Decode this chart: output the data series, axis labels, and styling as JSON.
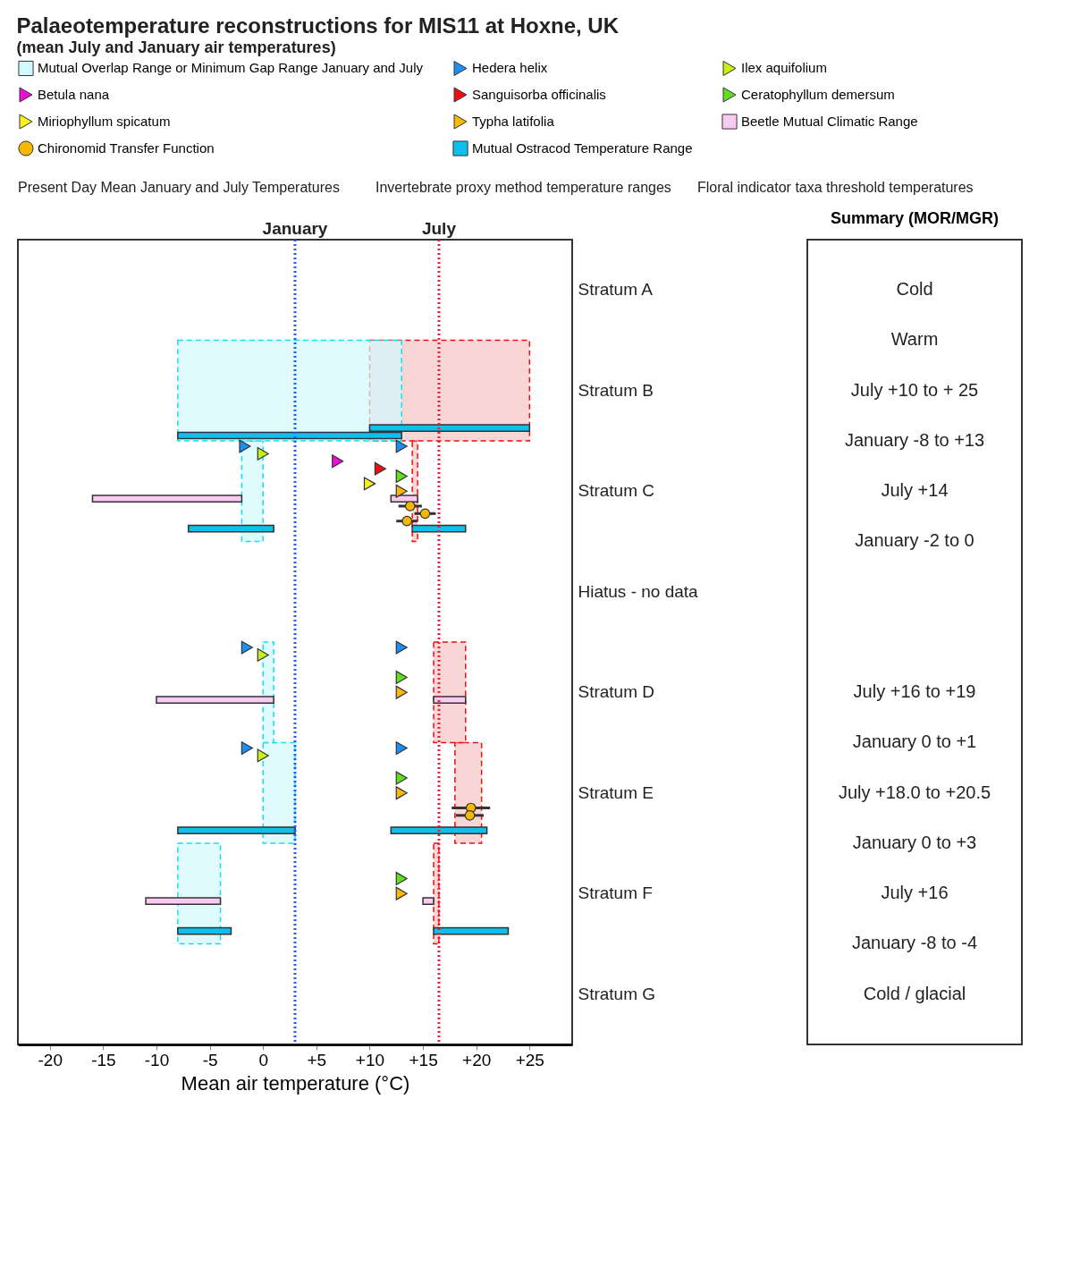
{
  "chart_data": {
    "type": "bar",
    "orientation": "horizontal",
    "title": "Palaeotemperature reconstructions for MIS11 at Hoxne, UK",
    "subtitle": "(mean July and January air temperatures)",
    "xlabel": "Mean air temperature (°C)",
    "categories": [
      "Stratum A",
      "Stratum B",
      "Stratum C",
      "Hiatus - no data",
      "Stratum D",
      "Stratum E",
      "Stratum F",
      "Stratum G"
    ],
    "xlim": [
      -23,
      29
    ],
    "xticks": [
      -20,
      -15,
      -10,
      -5,
      0,
      {
        "value": 5,
        "label": "+5"
      },
      {
        "value": 10,
        "label": "+10"
      },
      {
        "value": 15,
        "label": "+15"
      },
      {
        "value": 20,
        "label": "+20"
      },
      {
        "value": 25,
        "label": "+25"
      }
    ],
    "grid": false,
    "legend": "top",
    "ref_lines": [
      {
        "axis": "x",
        "value": 3,
        "label": "January",
        "color": "#1a5cff",
        "line_style": "dotted"
      },
      {
        "axis": "x",
        "value": 16.5,
        "label": "July",
        "color": "#ee1c3a",
        "line_style": "dotted"
      }
    ],
    "series": [
      {
        "name": "Mutual Overlap Range or Minimum Gap Range January and July",
        "color": "#d2fafd",
        "line_style": "dashed",
        "x": [
          "Stratum B",
          "Stratum C",
          "Stratum D",
          "Stratum E",
          "Stratum F"
        ],
        "base": [
          -8,
          -2,
          0,
          0,
          -8
        ],
        "values": [
          21,
          2,
          1,
          3,
          4
        ]
      },
      {
        "color": "#f7c5c5",
        "line_style": "dashed",
        "x": [
          "Stratum B",
          "Stratum C",
          "Stratum D",
          "Stratum E",
          "Stratum F"
        ],
        "base": [
          10,
          14,
          16,
          18,
          16
        ],
        "values": [
          15,
          0.5,
          3,
          2.5,
          0.5
        ]
      },
      {
        "name": "Hedera helix",
        "type": "scatter",
        "marker": "triangle",
        "color": "#1e8ef0",
        "x": [
          "Stratum C",
          "Stratum C",
          "Stratum D",
          "Stratum D",
          "Stratum E",
          "Stratum E"
        ],
        "values": [
          -1.7,
          13,
          -1.5,
          13,
          -1.5,
          13
        ]
      },
      {
        "name": "Ilex aquifolium",
        "type": "scatter",
        "marker": "triangle",
        "color": "#c8f014",
        "x": [
          "Stratum C",
          "Stratum D",
          "Stratum E"
        ],
        "values": [
          0,
          0,
          0
        ]
      },
      {
        "name": "Betula nana",
        "type": "scatter",
        "marker": "triangle",
        "color": "#ee0cd8",
        "x": [
          "Stratum C"
        ],
        "values": [
          7
        ]
      },
      {
        "name": "Sanguisorba officinalis",
        "type": "scatter",
        "marker": "triangle",
        "color": "#ee1010",
        "x": [
          "Stratum C"
        ],
        "values": [
          11
        ]
      },
      {
        "name": "Ceratophyllum demersum",
        "type": "scatter",
        "marker": "triangle",
        "color": "#60e020",
        "x": [
          "Stratum C",
          "Stratum D",
          "Stratum E",
          "Stratum F"
        ],
        "values": [
          13,
          13,
          13,
          13
        ]
      },
      {
        "name": "Miriophyllum spicatum",
        "type": "scatter",
        "marker": "triangle",
        "color": "#f8f020",
        "x": [
          "Stratum C"
        ],
        "values": [
          10
        ]
      },
      {
        "name": "Typha latifolia",
        "type": "scatter",
        "marker": "triangle",
        "color": "#f8b90c",
        "x": [
          "Stratum C",
          "Stratum D",
          "Stratum E",
          "Stratum F"
        ],
        "values": [
          13,
          13,
          13,
          13
        ]
      },
      {
        "name": "Beetle Mutual Climatic Range",
        "color": "#f9cbf3",
        "x": [
          "Stratum C",
          "Stratum C",
          "Stratum D",
          "Stratum D",
          "Stratum F",
          "Stratum F"
        ],
        "base": [
          -16,
          12,
          -10,
          16,
          -11,
          15
        ],
        "values": [
          14,
          2.5,
          11,
          3,
          7,
          1
        ]
      },
      {
        "name": "Chironomid Transfer Function",
        "type": "scatter",
        "marker": "circle",
        "color": "#f5b800",
        "x": [
          "Stratum C",
          "Stratum C",
          "Stratum C",
          "Stratum E",
          "Stratum E"
        ],
        "values": [
          13.8,
          15.2,
          13.5,
          19.5,
          19.4
        ],
        "errors": [
          1.1,
          1,
          1,
          1.8,
          1.3
        ]
      },
      {
        "name": "Mutual Ostracod Temperature Range",
        "color": "#10c0ec",
        "x": [
          "Stratum B",
          "Stratum B",
          "Stratum C",
          "Stratum C",
          "Stratum E",
          "Stratum E",
          "Stratum F",
          "Stratum F"
        ],
        "base": [
          10,
          -8,
          -7,
          14,
          -8,
          12,
          -8,
          16
        ],
        "values": [
          15,
          21,
          8,
          5,
          11,
          9,
          5,
          7
        ]
      }
    ],
    "annotations": [
      "Summary (MOR/MGR)",
      "Cold",
      "Warm",
      "July +10 to + 25",
      "January -8 to +13",
      "July +14",
      "January -2 to 0",
      "July +16 to +19",
      "January 0 to +1",
      "July +18.0 to +20.5",
      "January 0 to +3",
      "July +16",
      "January -8 to -4",
      "Cold / glacial",
      "Present Day Mean January and July Temperatures",
      "Invertebrate proxy method temperature ranges",
      "Floral indicator taxa threshold temperatures"
    ]
  }
}
